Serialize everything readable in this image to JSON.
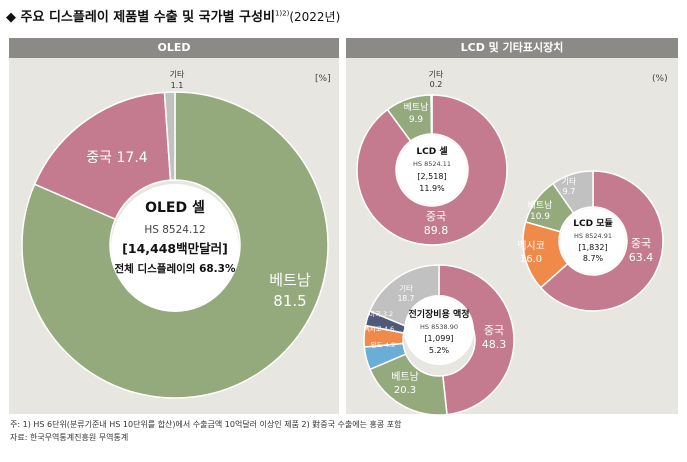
{
  "title": {
    "bullet": "◆",
    "text": "주요 디스플레이 제품별 수출 및 국가별 구성비",
    "sup": "1)2)",
    "year": "(2022년)"
  },
  "panels": {
    "oled": {
      "header": "OLED",
      "unit": "[%]"
    },
    "lcd": {
      "header": "LCD 및 기타표시장치",
      "unit": "(%)"
    }
  },
  "chart_data": [
    {
      "type": "pie",
      "title": "OLED 셀",
      "code": "HS 8524.12",
      "amount": "[14,448백만달러]",
      "share": "전체 디스플레이의 68.3%",
      "slices": [
        {
          "label": "베트남",
          "value": 81.5,
          "color": "#94a97c"
        },
        {
          "label": "중국",
          "value": 17.4,
          "color": "#c57b8f"
        },
        {
          "label": "기타",
          "value": 1.1,
          "color": "#c1c1c1"
        }
      ]
    },
    {
      "type": "pie",
      "title": "LCD 셀",
      "code": "HS 8524.11",
      "amount": "[2,518]",
      "share": "11.9%",
      "slices": [
        {
          "label": "중국",
          "value": 89.8,
          "color": "#c57b8f"
        },
        {
          "label": "베트남",
          "value": 9.9,
          "color": "#94a97c"
        },
        {
          "label": "기타",
          "value": 0.2,
          "color": "#c1c1c1"
        }
      ]
    },
    {
      "type": "pie",
      "title": "LCD 모듈",
      "code": "HS 8524.91",
      "amount": "[1,832]",
      "share": "8.7%",
      "slices": [
        {
          "label": "중국",
          "value": 63.4,
          "color": "#c57b8f"
        },
        {
          "label": "멕시코",
          "value": 16.0,
          "color": "#f08a4b"
        },
        {
          "label": "베트남",
          "value": 10.9,
          "color": "#94a97c"
        },
        {
          "label": "기타",
          "value": 9.7,
          "color": "#c1c1c1"
        }
      ]
    },
    {
      "type": "pie",
      "title": "전기장비용 액정",
      "code": "HS 8538.90",
      "amount": "[1,099]",
      "share": "5.2%",
      "slices": [
        {
          "label": "중국",
          "value": 48.3,
          "color": "#c57b8f"
        },
        {
          "label": "베트남",
          "value": 20.3,
          "color": "#94a97c"
        },
        {
          "label": "인도",
          "value": 4.9,
          "color": "#6aaed8"
        },
        {
          "label": "멕시코",
          "value": 4.6,
          "color": "#f08a4b"
        },
        {
          "label": "미국",
          "value": 3.2,
          "color": "#4f5a7a"
        },
        {
          "label": "기타",
          "value": 18.7,
          "color": "#c1c1c1"
        }
      ]
    }
  ],
  "notes": {
    "line1": "주: 1) HS 6단위(분류기준내 HS 10단위를 합산)에서 수출금액 10억달러 이상인 제품    2) 對중국 수출에는 홍콩 포함",
    "line2": "자료: 한국무역통계진흥원 무역통계"
  }
}
